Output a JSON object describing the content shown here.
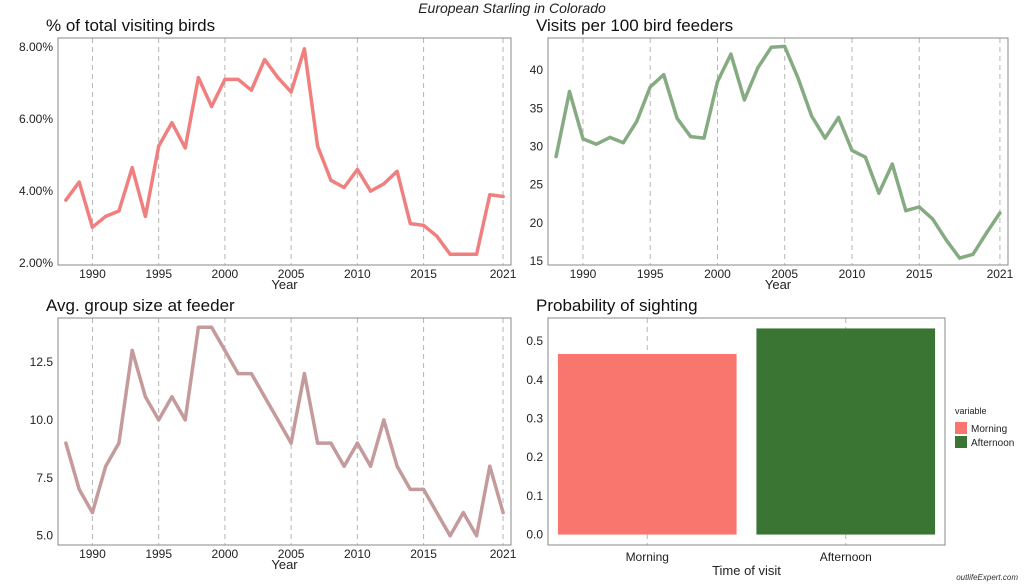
{
  "title": "European Starling in Colorado",
  "watermark": "outlifeExpert.com",
  "chart_data": [
    {
      "type": "line",
      "title": "% of total visiting birds",
      "xlabel": "Year",
      "ylabel": "",
      "color": "#f08080",
      "x": [
        1988,
        1989,
        1990,
        1991,
        1992,
        1993,
        1994,
        1995,
        1996,
        1997,
        1998,
        1999,
        2000,
        2001,
        2002,
        2003,
        2004,
        2005,
        2006,
        2007,
        2008,
        2009,
        2010,
        2011,
        2012,
        2013,
        2014,
        2015,
        2016,
        2017,
        2018,
        2019,
        2020,
        2021
      ],
      "values": [
        3.75,
        4.25,
        3.0,
        3.3,
        3.45,
        4.65,
        3.3,
        5.25,
        5.9,
        5.2,
        7.15,
        6.35,
        7.1,
        7.1,
        6.8,
        7.65,
        7.15,
        6.75,
        7.95,
        5.25,
        4.3,
        4.1,
        4.6,
        4.0,
        4.2,
        4.55,
        3.1,
        3.05,
        2.75,
        2.25,
        2.25,
        2.25,
        3.9,
        3.85
      ],
      "x_ticks": [
        "1990",
        "1995",
        "2000",
        "2005",
        "2010",
        "2015",
        "2021"
      ],
      "y_ticks": [
        "2.00%",
        "4.00%",
        "6.00%",
        "8.00%"
      ],
      "xlim": [
        1987.4,
        2021.6
      ],
      "ylim": [
        1.95,
        8.25
      ],
      "grid": "vertical dashed"
    },
    {
      "type": "line",
      "title": "Visits per 100 bird feeders",
      "xlabel": "Year",
      "ylabel": "",
      "color": "#86ab82",
      "x": [
        1988,
        1989,
        1990,
        1991,
        1992,
        1993,
        1994,
        1995,
        1996,
        1997,
        1998,
        1999,
        2000,
        2001,
        2002,
        2003,
        2004,
        2005,
        2006,
        2007,
        2008,
        2009,
        2010,
        2011,
        2012,
        2013,
        2014,
        2015,
        2016,
        2017,
        2018,
        2019,
        2020,
        2021
      ],
      "values": [
        28.7,
        37.2,
        31.0,
        30.3,
        31.2,
        30.5,
        33.3,
        37.8,
        39.4,
        33.7,
        31.3,
        31.1,
        38.5,
        42.1,
        36.1,
        40.3,
        43.0,
        43.1,
        38.9,
        34.0,
        31.1,
        33.8,
        29.5,
        28.6,
        23.9,
        27.7,
        21.6,
        22.1,
        20.5,
        17.8,
        15.4,
        15.9,
        18.7,
        21.3
      ],
      "x_ticks": [
        "1990",
        "1995",
        "2000",
        "2005",
        "2010",
        "2015",
        "2021"
      ],
      "y_ticks": [
        "15",
        "20",
        "25",
        "30",
        "35",
        "40"
      ],
      "xlim": [
        1987.4,
        2021.6
      ],
      "ylim": [
        14.5,
        44.2
      ],
      "grid": "vertical dashed"
    },
    {
      "type": "line",
      "title": "Avg. group size at feeder",
      "xlabel": "Year",
      "ylabel": "",
      "color": "#c49a9c",
      "x": [
        1988,
        1989,
        1990,
        1991,
        1992,
        1993,
        1994,
        1995,
        1996,
        1997,
        1998,
        1999,
        2000,
        2001,
        2002,
        2003,
        2004,
        2005,
        2006,
        2007,
        2008,
        2009,
        2010,
        2011,
        2012,
        2013,
        2014,
        2015,
        2016,
        2017,
        2018,
        2019,
        2020,
        2021
      ],
      "values": [
        9,
        7,
        6,
        8,
        9,
        13,
        11,
        10,
        11,
        10,
        14,
        14,
        13,
        12,
        12,
        11,
        10,
        9,
        12,
        9,
        9,
        8,
        9,
        8,
        10,
        8,
        7,
        7,
        6,
        5,
        6,
        5,
        8,
        6
      ],
      "x_ticks": [
        "1990",
        "1995",
        "2000",
        "2005",
        "2010",
        "2015",
        "2021"
      ],
      "y_ticks": [
        "5.0",
        "7.5",
        "10.0",
        "12.5"
      ],
      "xlim": [
        1987.4,
        2021.6
      ],
      "ylim": [
        4.6,
        14.4
      ],
      "grid": "vertical dashed"
    },
    {
      "type": "bar",
      "title": "Probability of sighting",
      "xlabel": "Time of visit",
      "ylabel": "",
      "categories": [
        "Morning",
        "Afternoon"
      ],
      "values": [
        0.467,
        0.533
      ],
      "colors": [
        "#f8766d",
        "#3a7534"
      ],
      "y_ticks": [
        "0.0",
        "0.1",
        "0.2",
        "0.3",
        "0.4",
        "0.5"
      ],
      "ylim": [
        -0.027,
        0.56
      ],
      "legend_title": "variable",
      "legend": [
        "Morning",
        "Afternoon"
      ],
      "legend_position": "right",
      "grid": "vertical dashed"
    }
  ]
}
